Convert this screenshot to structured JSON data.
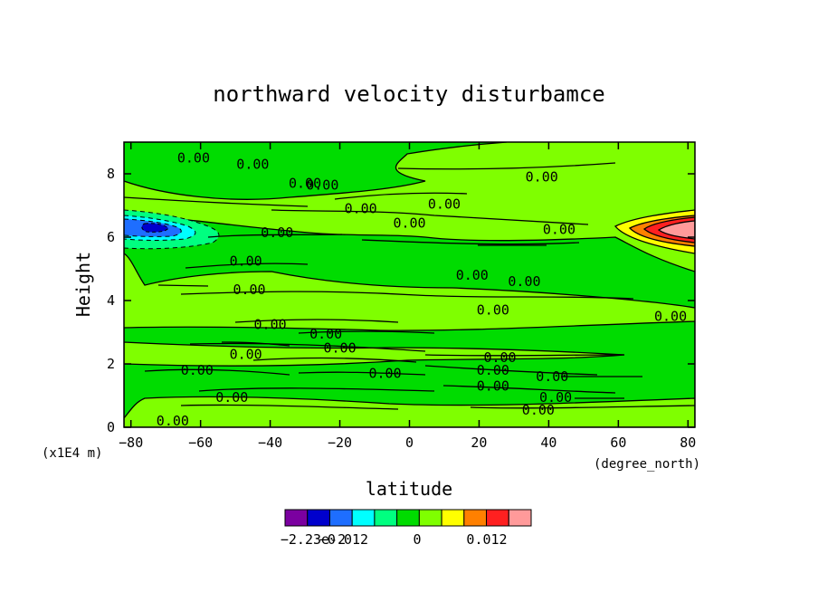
{
  "chart_data": {
    "type": "contour",
    "title": "northward velocity disturbamce",
    "xlabel": "latitude",
    "x_units": "(degree_north)",
    "ylabel": "Height",
    "y_units": "(x1E4 m)",
    "xlim": [
      -82,
      82
    ],
    "ylim": [
      0,
      9
    ],
    "x_ticks": [
      -80,
      -60,
      -40,
      -20,
      0,
      20,
      40,
      60,
      80
    ],
    "y_ticks": [
      0,
      2,
      4,
      6,
      8
    ],
    "grid": false,
    "background_level_color": "#7fff00",
    "contour_label_text": "0.00",
    "contour_labels": [
      {
        "x": -45,
        "y": 8.3
      },
      {
        "x": -62,
        "y": 8.5
      },
      {
        "x": -30,
        "y": 7.7
      },
      {
        "x": 38,
        "y": 7.9
      },
      {
        "x": -25,
        "y": 7.65
      },
      {
        "x": -14,
        "y": 6.9
      },
      {
        "x": 10,
        "y": 7.05
      },
      {
        "x": 0,
        "y": 6.45
      },
      {
        "x": 43,
        "y": 6.25
      },
      {
        "x": -38,
        "y": 6.15
      },
      {
        "x": -47,
        "y": 5.25
      },
      {
        "x": 18,
        "y": 4.8
      },
      {
        "x": 33,
        "y": 4.6
      },
      {
        "x": -46,
        "y": 4.35
      },
      {
        "x": 24,
        "y": 3.7
      },
      {
        "x": 75,
        "y": 3.5
      },
      {
        "x": -40,
        "y": 3.25
      },
      {
        "x": -24,
        "y": 2.95
      },
      {
        "x": -20,
        "y": 2.5
      },
      {
        "x": -47,
        "y": 2.3
      },
      {
        "x": 26,
        "y": 2.2
      },
      {
        "x": 24,
        "y": 1.8
      },
      {
        "x": 41,
        "y": 1.6
      },
      {
        "x": -61,
        "y": 1.8
      },
      {
        "x": -7,
        "y": 1.7
      },
      {
        "x": 24,
        "y": 1.3
      },
      {
        "x": 42,
        "y": 0.95
      },
      {
        "x": -51,
        "y": 0.95
      },
      {
        "x": 37,
        "y": 0.55
      },
      {
        "x": -68,
        "y": 0.2
      }
    ],
    "features": [
      {
        "name": "negative-extremum",
        "x": -72,
        "y": 6.3
      },
      {
        "name": "positive-extremum",
        "x": 75,
        "y": 6.1
      }
    ],
    "colorbar": {
      "colors": [
        "#7b00a0",
        "#0000cd",
        "#1e6eff",
        "#00ffff",
        "#00ff80",
        "#00dc00",
        "#7fff00",
        "#ffff00",
        "#ff8000",
        "#ff2020",
        "#ff9a9a"
      ],
      "tick_labels": [
        "-2.23e-2",
        "-0.012",
        "0",
        "0.012"
      ]
    }
  }
}
